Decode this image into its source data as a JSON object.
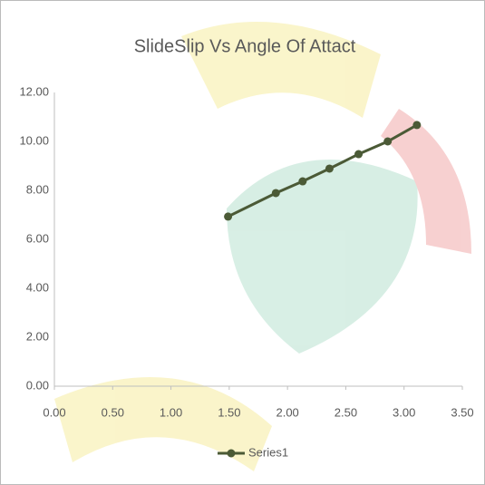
{
  "chart_data": {
    "type": "line",
    "title": "SlideSlip Vs Angle Of Attact",
    "x": [
      1.49,
      1.9,
      2.13,
      2.36,
      2.61,
      2.86,
      3.11
    ],
    "series": [
      {
        "name": "Series1",
        "color": "#4b5a36",
        "values": [
          6.93,
          7.89,
          8.37,
          8.89,
          9.48,
          10.0,
          10.67
        ]
      }
    ],
    "xlim": [
      0,
      3.5
    ],
    "xticks": [
      {
        "value": 0,
        "label": "0.00"
      },
      {
        "value": 0.5,
        "label": "0.50"
      },
      {
        "value": 1,
        "label": "1.00"
      },
      {
        "value": 1.5,
        "label": "1.50"
      },
      {
        "value": 2,
        "label": "2.00"
      },
      {
        "value": 2.5,
        "label": "2.50"
      },
      {
        "value": 3,
        "label": "3.00"
      },
      {
        "value": 3.5,
        "label": "3.50"
      }
    ],
    "ylim": [
      0,
      12
    ],
    "yticks": [
      {
        "value": 0,
        "label": "0.00"
      },
      {
        "value": 2,
        "label": "2.00"
      },
      {
        "value": 4,
        "label": "4.00"
      },
      {
        "value": 6,
        "label": "6.00"
      },
      {
        "value": 8,
        "label": "8.00"
      },
      {
        "value": 10,
        "label": "10.00"
      },
      {
        "value": 12,
        "label": "12.00"
      }
    ],
    "grid": false,
    "legend": "bottom"
  }
}
